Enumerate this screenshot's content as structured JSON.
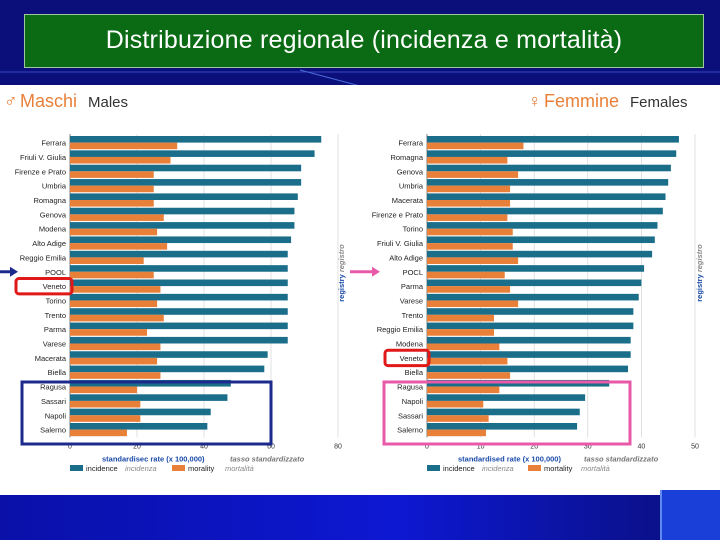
{
  "slide": {
    "title": "Distribuzione regionale (incidenza e mortalità)"
  },
  "colors": {
    "incidence": "#1a6e8a",
    "mortality": "#e8803a",
    "pool": "#f6e9a8",
    "marker_red": "#e01818",
    "box_navy": "#1c2a8c",
    "box_pink": "#e85aa8",
    "arrow_navy": "#1c2a8c",
    "arrow_pink": "#e85aa8"
  },
  "chart_data": [
    {
      "type": "bar",
      "orientation": "horizontal",
      "header": {
        "symbol": "♂",
        "italian": "Maschi",
        "english": "Males"
      },
      "categories": [
        "Ferrara",
        "Friuli V. Giulia",
        "Firenze e Prato",
        "Umbria",
        "Romagna",
        "Genova",
        "Modena",
        "Alto Adige",
        "Reggio Emilia",
        "POOL",
        "Veneto",
        "Torino",
        "Trento",
        "Parma",
        "Varese",
        "Macerata",
        "Biella",
        "Ragusa",
        "Sassari",
        "Napoli",
        "Salerno"
      ],
      "series": [
        {
          "name": "incidence",
          "values": [
            75,
            73,
            69,
            69,
            68,
            67,
            67,
            66,
            65,
            65,
            65,
            65,
            65,
            65,
            65,
            59,
            58,
            48,
            47,
            42,
            41
          ]
        },
        {
          "name": "mortality",
          "values": [
            32,
            30,
            25,
            25,
            25,
            28,
            26,
            29,
            22,
            25,
            27,
            26,
            28,
            23,
            27,
            26,
            27,
            20,
            21,
            21,
            17
          ]
        }
      ],
      "highlight": [
        "POOL",
        "Veneto"
      ],
      "xticks": [
        "0",
        "20",
        "40",
        "60",
        "80"
      ],
      "xlim": [
        0,
        80
      ],
      "xlabel": "standardisec rate (x 100,000)",
      "xlabel_it": "tasso standardizzato",
      "side_label": "registry",
      "side_label_it": "registro",
      "legend": {
        "incidence": "incidence",
        "incidence_it": "incidenza",
        "mortality": "morality",
        "mortality_it": "mortalità"
      }
    },
    {
      "type": "bar",
      "orientation": "horizontal",
      "header": {
        "symbol": "♀",
        "italian": "Femmine",
        "english": "Females"
      },
      "categories": [
        "Ferrara",
        "Romagna",
        "Genova",
        "Umbria",
        "Macerata",
        "Firenze e Prato",
        "Torino",
        "Friuli V. Giulia",
        "Alto Adige",
        "POCL",
        "Parma",
        "Varese",
        "Trento",
        "Reggio Emilia",
        "Modena",
        "Veneto",
        "Biella",
        "Ragusa",
        "Napoli",
        "Sassari",
        "Salerno"
      ],
      "series": [
        {
          "name": "incidence",
          "values": [
            47,
            46.5,
            45.5,
            45,
            44.5,
            44,
            43,
            42.5,
            42,
            40.5,
            40,
            39.5,
            38.5,
            38.5,
            38,
            38,
            37.5,
            34,
            29.5,
            28.5,
            28
          ]
        },
        {
          "name": "mortality",
          "values": [
            18,
            15,
            17,
            15.5,
            15.5,
            15,
            16,
            16,
            17,
            14.5,
            15.5,
            17,
            12.5,
            12.5,
            13.5,
            15,
            15.5,
            13.5,
            10.5,
            11.5,
            11
          ]
        }
      ],
      "highlight": [
        "POCL",
        "Veneto"
      ],
      "xticks": [
        "0",
        "10",
        "20",
        "30",
        "40",
        "50"
      ],
      "xlim": [
        0,
        50
      ],
      "xlabel": "standardised rate (x 100,000)",
      "xlabel_it": "tasso standardizzato",
      "side_label": "registry",
      "side_label_it": "registro",
      "legend": {
        "incidence": "incidence",
        "incidence_it": "incidenza",
        "mortality": "mortality",
        "mortality_it": "mortalità"
      }
    }
  ]
}
